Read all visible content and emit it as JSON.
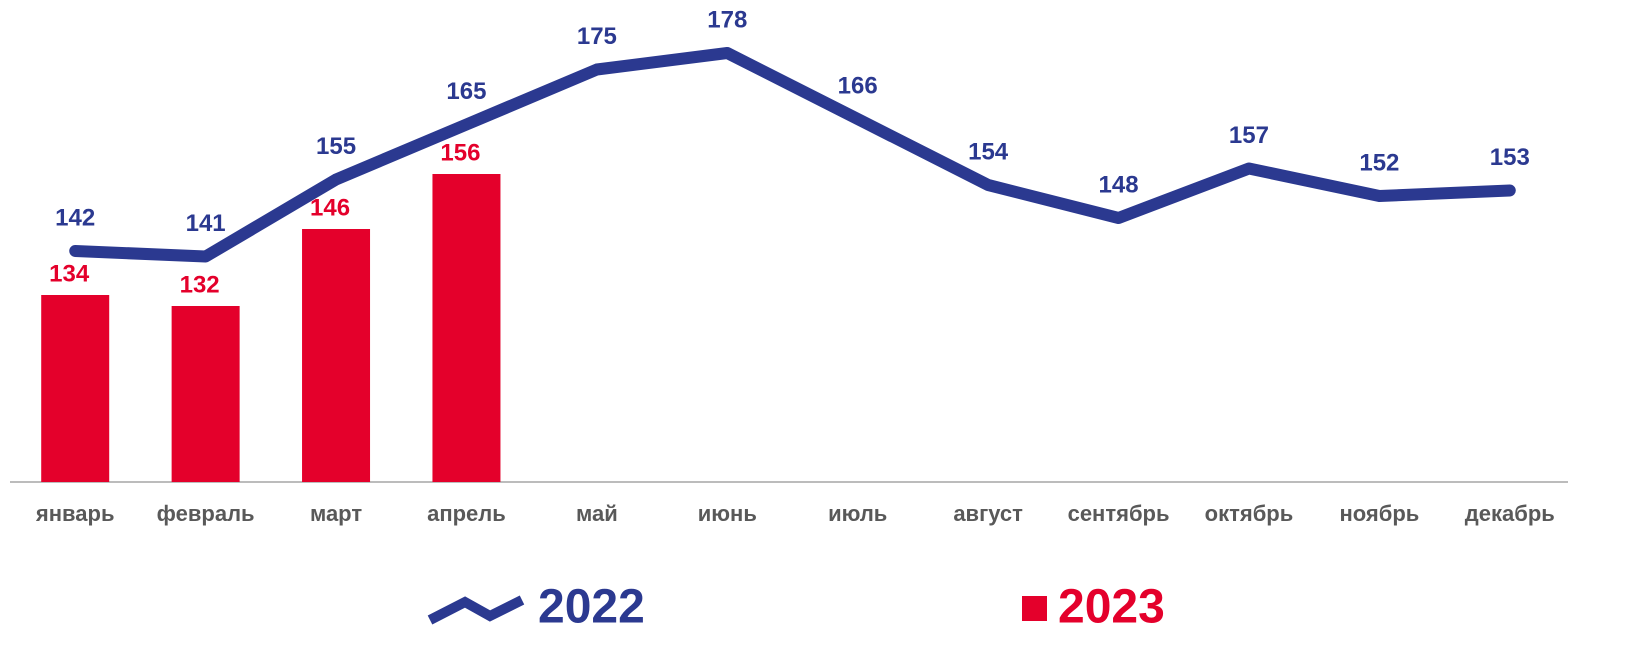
{
  "chart_data": {
    "type": "combo",
    "categories": [
      "январь",
      "февраль",
      "март",
      "апрель",
      "май",
      "июнь",
      "июль",
      "август",
      "сентябрь",
      "октябрь",
      "ноябрь",
      "декабрь"
    ],
    "series": [
      {
        "name": "2022",
        "type": "line",
        "color": "#2b3990",
        "values": [
          142,
          141,
          155,
          165,
          175,
          178,
          166,
          154,
          148,
          157,
          152,
          153
        ]
      },
      {
        "name": "2023",
        "type": "bar",
        "color": "#e4002b",
        "values": [
          134,
          132,
          146,
          156,
          null,
          null,
          null,
          null,
          null,
          null,
          null,
          null
        ]
      }
    ],
    "ylim": [
      100,
      185
    ]
  }
}
